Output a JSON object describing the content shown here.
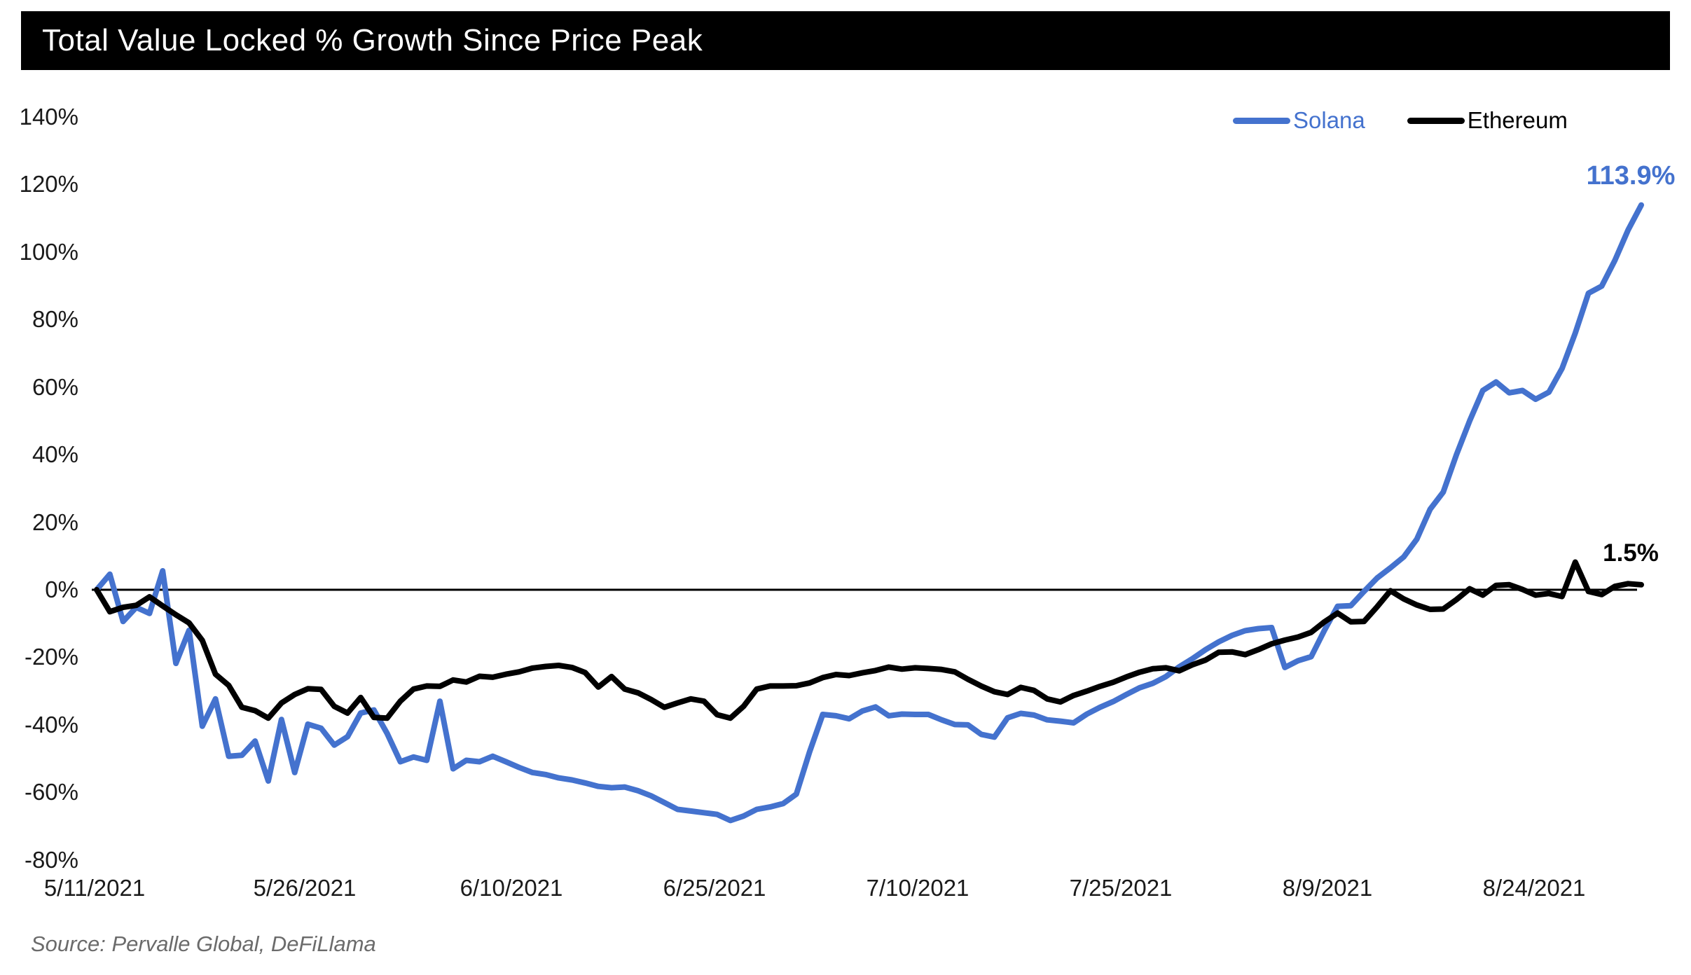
{
  "header": {
    "title": "Total Value Locked % Growth Since Price Peak"
  },
  "source": {
    "text": "Source: Pervalle Global, DeFiLlama"
  },
  "colors": {
    "solana": "#4472CE",
    "ethereum": "#000000",
    "axis_line": "#000000",
    "title_bg": "#000000",
    "title_fg": "#ffffff"
  },
  "legend": {
    "items": [
      {
        "label": "Solana"
      },
      {
        "label": "Ethereum"
      }
    ]
  },
  "annotations": {
    "solana_end": "113.9%",
    "ethereum_end": "1.5%"
  },
  "chart_data": {
    "type": "line",
    "title": "Total Value Locked % Growth Since Price Peak",
    "xlabel": "",
    "ylabel": "",
    "x_range": [
      "5/11/2021",
      "8/31/2021"
    ],
    "ylim": [
      -80,
      140
    ],
    "grid": false,
    "legend_position": "top-right",
    "y_tick_labels": [
      "140%",
      "120%",
      "100%",
      "80%",
      "60%",
      "40%",
      "20%",
      "0%",
      "-20%",
      "-40%",
      "-60%",
      "-80%"
    ],
    "y_tick_values": [
      140,
      120,
      100,
      80,
      60,
      40,
      20,
      0,
      -20,
      -40,
      -60,
      -80
    ],
    "x_tick_labels": [
      "5/11/2021",
      "5/26/2021",
      "6/10/2021",
      "6/25/2021",
      "7/10/2021",
      "7/25/2021",
      "8/9/2021",
      "8/24/2021"
    ],
    "series": [
      {
        "name": "Solana",
        "color": "#4472CE",
        "end_label": "113.9%",
        "values": [
          0,
          4.6,
          -9.4,
          -5.2,
          -7,
          5.6,
          -21.8,
          -12,
          -40.4,
          -32.3,
          -49.3,
          -49,
          -44.8,
          -56.6,
          -38.4,
          -54.1,
          -39.8,
          -41,
          -46,
          -43.5,
          -36.5,
          -35.6,
          -42.5,
          -50.9,
          -49.5,
          -50.5,
          -33,
          -53,
          -50.5,
          -50.9,
          -49.3,
          -50.9,
          -52.6,
          -54.1,
          -54.7,
          -55.7,
          -56.3,
          -57.2,
          -58.2,
          -58.6,
          -58.4,
          -59.5,
          -61,
          -63,
          -65,
          -65.5,
          -66,
          -66.5,
          -68.3,
          -67,
          -65,
          -64.3,
          -63.3,
          -60.5,
          -48,
          -36.9,
          -37.3,
          -38.2,
          -35.9,
          -34.7,
          -37.3,
          -36.8,
          -36.9,
          -36.9,
          -38.5,
          -39.9,
          -40,
          -42.8,
          -43.6,
          -37.9,
          -36.6,
          -37.1,
          -38.5,
          -38.9,
          -39.4,
          -36.8,
          -34.8,
          -33.1,
          -31,
          -29,
          -27.7,
          -25.7,
          -22.8,
          -20.4,
          -17.7,
          -15.4,
          -13.5,
          -12.1,
          -11.5,
          -11.2,
          -23,
          -21,
          -19.8,
          -12,
          -4.9,
          -4.7,
          -0.5,
          3.5,
          6.5,
          9.7,
          15,
          23.8,
          28.9,
          40,
          50,
          59,
          61.5,
          58.3,
          59,
          56.4,
          58.5,
          65.5,
          76,
          87.8,
          89.9,
          97.5,
          106.5,
          113.9
        ]
      },
      {
        "name": "Ethereum",
        "color": "#000000",
        "end_label": "1.5%",
        "values": [
          0,
          -6.5,
          -5.2,
          -4.6,
          -2.1,
          -4.8,
          -7.4,
          -9.8,
          -15,
          -25,
          -28.3,
          -34.8,
          -35.8,
          -38,
          -33.5,
          -31,
          -29.3,
          -29.5,
          -34.5,
          -36.5,
          -31.9,
          -37.8,
          -38,
          -33,
          -29.4,
          -28.5,
          -28.6,
          -26.7,
          -27.3,
          -25.6,
          -25.9,
          -25,
          -24.3,
          -23.2,
          -22.7,
          -22.4,
          -23,
          -24.5,
          -28.8,
          -25.7,
          -29.4,
          -30.5,
          -32.5,
          -34.8,
          -33.5,
          -32.3,
          -33,
          -37,
          -38,
          -34.5,
          -29.4,
          -28.5,
          -28.5,
          -28.4,
          -27.6,
          -26,
          -25.1,
          -25.4,
          -24.6,
          -23.9,
          -22.9,
          -23.5,
          -23.1,
          -23.3,
          -23.6,
          -24.3,
          -26.5,
          -28.5,
          -30.2,
          -31,
          -28.9,
          -29.8,
          -32.3,
          -33.2,
          -31.3,
          -30,
          -28.6,
          -27.4,
          -25.8,
          -24.4,
          -23.4,
          -23.1,
          -24,
          -22.2,
          -20.8,
          -18.5,
          -18.4,
          -19.2,
          -17.7,
          -16,
          -14.9,
          -14,
          -12.6,
          -9.5,
          -6.9,
          -9.5,
          -9.4,
          -5,
          -0.3,
          -2.7,
          -4.5,
          -5.8,
          -5.7,
          -2.9,
          0.3,
          -1.6,
          1.3,
          1.5,
          0.1,
          -1.6,
          -1.1,
          -2,
          8.2,
          -0.5,
          -1.4,
          1,
          1.8,
          1.5
        ]
      }
    ]
  }
}
